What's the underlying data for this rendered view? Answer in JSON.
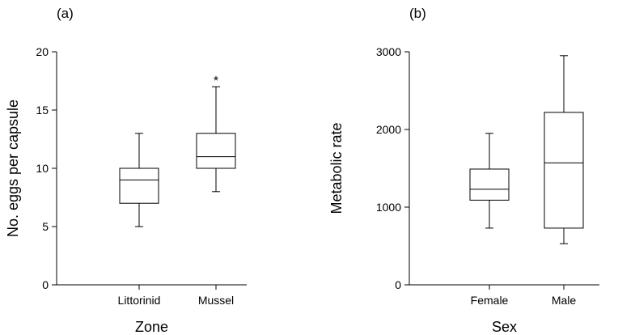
{
  "chart_data": [
    {
      "type": "box",
      "panel_label": "(a)",
      "xlabel": "Zone",
      "ylabel": "No. eggs per capsule",
      "ylim": [
        0,
        20
      ],
      "yticks": [
        0,
        5,
        10,
        15,
        20
      ],
      "categories": [
        "Littorinid",
        "Mussel"
      ],
      "boxes": [
        {
          "category": "Littorinid",
          "whisker_low": 5,
          "q1": 7,
          "median": 9,
          "q3": 10,
          "whisker_high": 13
        },
        {
          "category": "Mussel",
          "whisker_low": 8,
          "q1": 10,
          "median": 11,
          "q3": 13,
          "whisker_high": 17
        }
      ],
      "outliers": [
        {
          "category": "Mussel",
          "y": 18,
          "symbol": "*"
        }
      ]
    },
    {
      "type": "box",
      "panel_label": "(b)",
      "xlabel": "Sex",
      "ylabel": "Metabolic rate",
      "ylim": [
        0,
        3000
      ],
      "yticks": [
        0,
        1000,
        2000,
        3000
      ],
      "categories": [
        "Female",
        "Male"
      ],
      "boxes": [
        {
          "category": "Female",
          "whisker_low": 730,
          "q1": 1090,
          "median": 1230,
          "q3": 1490,
          "whisker_high": 1950
        },
        {
          "category": "Male",
          "whisker_low": 530,
          "q1": 730,
          "median": 1570,
          "q3": 2220,
          "whisker_high": 2950
        }
      ],
      "outliers": []
    }
  ]
}
